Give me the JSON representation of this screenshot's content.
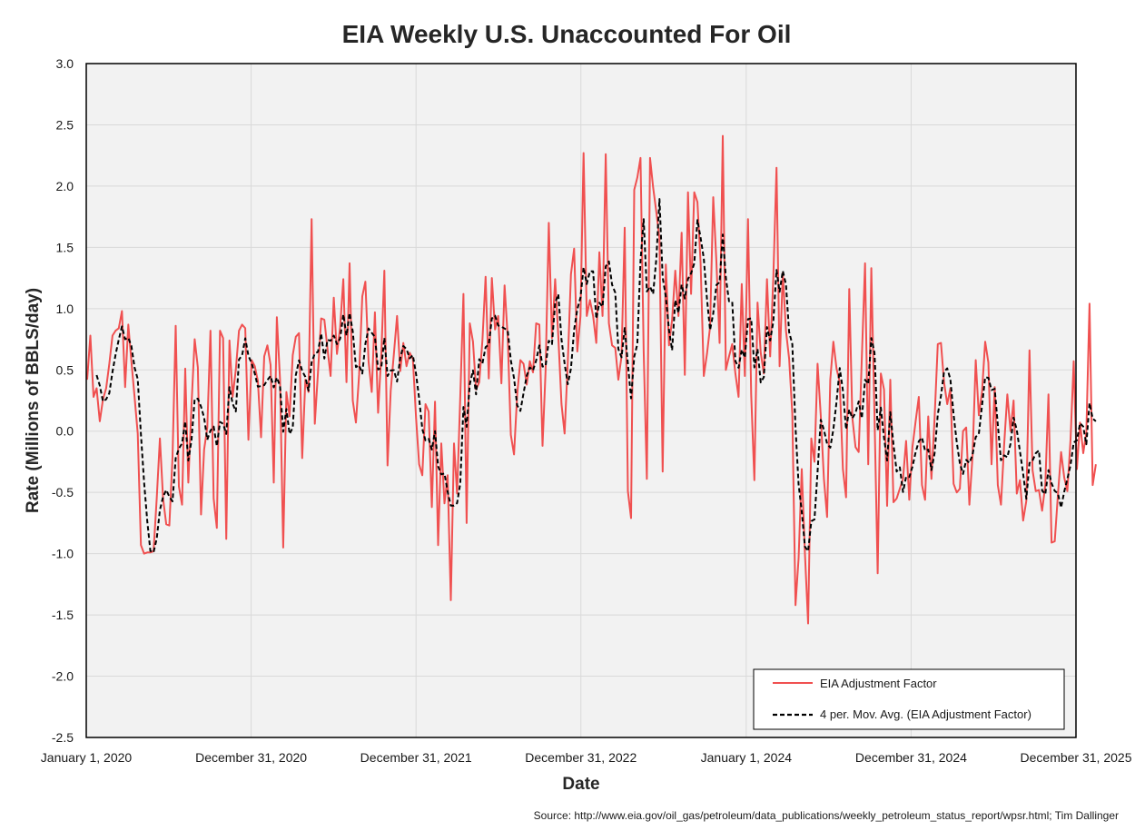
{
  "chart_data": {
    "type": "line",
    "title": "EIA Weekly U.S. Unaccounted For Oil",
    "xlabel": "Date",
    "ylabel": "Rate (Millions of BBLS/day)",
    "source": "Source: http://www.eia.gov/oil_gas/petroleum/data_publications/weekly_petroleum_status_report/wpsr.html; Tim Dallinger",
    "x_range": [
      "2020-01-01",
      "2025-12-31"
    ],
    "ylim": [
      -2.5,
      3.0
    ],
    "y_ticks": [
      -2.5,
      -2.0,
      -1.5,
      -1.0,
      -0.5,
      0.0,
      0.5,
      1.0,
      1.5,
      2.0,
      2.5,
      3.0
    ],
    "y_tick_labels": [
      "-2.5",
      "-2.0",
      "-1.5",
      "-1.0",
      "-0.5",
      "0.0",
      "0.5",
      "1.0",
      "1.5",
      "2.0",
      "2.5",
      "3.0"
    ],
    "x_ticks": [
      "2020-01-01",
      "2020-12-31",
      "2021-12-31",
      "2022-12-31",
      "2024-01-01",
      "2024-12-31",
      "2025-12-31"
    ],
    "x_tick_labels": [
      "January 1, 2020",
      "December 31, 2020",
      "December 31, 2021",
      "December 31, 2022",
      "January 1, 2024",
      "December 31, 2024",
      "December 31, 2025"
    ],
    "grid": true,
    "legend_position": "bottom-right",
    "series": [
      {
        "name": "EIA Adjustment Factor",
        "color": "#f05050",
        "style": "solid",
        "start_date": "2020-01-03",
        "interval_days": 7,
        "values": [
          0.42,
          0.78,
          0.28,
          0.35,
          0.08,
          0.26,
          0.35,
          0.55,
          0.78,
          0.82,
          0.84,
          0.98,
          0.36,
          0.87,
          0.57,
          0.28,
          -0.02,
          -0.93,
          -1.0,
          -0.99,
          -0.99,
          -0.98,
          -0.55,
          -0.06,
          -0.55,
          -0.76,
          -0.77,
          -0.21,
          0.86,
          -0.45,
          -0.6,
          0.51,
          -0.42,
          0.21,
          0.75,
          0.52,
          -0.68,
          -0.15,
          0.03,
          0.82,
          -0.55,
          -0.79,
          0.82,
          0.76,
          -0.88,
          0.74,
          0.28,
          0.5,
          0.82,
          0.87,
          0.84,
          -0.07,
          0.58,
          0.53,
          0.41,
          -0.05,
          0.61,
          0.7,
          0.54,
          -0.42,
          0.93,
          0.42,
          -0.95,
          0.32,
          0.12,
          0.62,
          0.77,
          0.8,
          -0.22,
          0.42,
          0.32,
          1.73,
          0.06,
          0.48,
          0.92,
          0.91,
          0.67,
          0.45,
          1.09,
          0.63,
          0.85,
          1.24,
          0.4,
          1.37,
          0.25,
          0.07,
          0.46,
          1.1,
          1.22,
          0.57,
          0.32,
          0.97,
          0.15,
          0.62,
          1.31,
          -0.28,
          0.33,
          0.63,
          0.94,
          0.49,
          0.72,
          0.53,
          0.64,
          0.59,
          0.11,
          -0.27,
          -0.36,
          0.22,
          0.16,
          -0.62,
          0.24,
          -0.93,
          -0.1,
          -0.59,
          -0.36,
          -1.38,
          -0.1,
          -0.51,
          0.28,
          1.12,
          -0.75,
          0.88,
          0.73,
          0.34,
          0.4,
          0.74,
          1.26,
          0.43,
          1.25,
          0.83,
          0.94,
          0.39,
          1.19,
          0.76,
          -0.03,
          -0.19,
          0.3,
          0.58,
          0.55,
          0.38,
          0.57,
          0.48,
          0.88,
          0.87,
          -0.12,
          0.5,
          1.7,
          0.76,
          1.24,
          0.77,
          0.22,
          -0.02,
          0.56,
          1.28,
          1.49,
          0.65,
          0.94,
          2.27,
          0.94,
          1.07,
          0.94,
          0.72,
          1.46,
          0.94,
          2.26,
          0.88,
          0.7,
          0.68,
          0.42,
          0.61,
          1.66,
          -0.49,
          -0.71,
          1.97,
          2.07,
          2.23,
          0.65,
          -0.39,
          2.23,
          1.99,
          1.79,
          1.57,
          -0.33,
          1.36,
          0.7,
          0.91,
          1.31,
          0.94,
          1.62,
          0.46,
          1.95,
          1.12,
          1.95,
          1.87,
          1.37,
          0.45,
          0.63,
          0.85,
          1.91,
          1.38,
          0.72,
          2.41,
          0.5,
          0.61,
          0.71,
          0.47,
          0.28,
          1.2,
          0.45,
          1.73,
          0.3,
          -0.4,
          1.05,
          0.64,
          0.47,
          1.24,
          0.61,
          1.26,
          2.15,
          0.53,
          1.29,
          0.82,
          0.59,
          0.14,
          -1.42,
          -1.04,
          -0.31,
          -1.0,
          -1.57,
          -0.06,
          -0.25,
          0.55,
          0.13,
          -0.39,
          -0.7,
          0.42,
          0.73,
          0.51,
          0.4,
          -0.31,
          -0.54,
          1.16,
          0.11,
          -0.13,
          -0.17,
          0.61,
          1.37,
          -0.27,
          1.33,
          0.13,
          -1.16,
          0.47,
          0.34,
          -0.61,
          0.42,
          -0.58,
          -0.55,
          -0.47,
          -0.39,
          -0.08,
          -0.56,
          -0.13,
          0.08,
          0.28,
          -0.44,
          -0.56,
          0.12,
          -0.39,
          0.11,
          0.71,
          0.72,
          0.4,
          0.22,
          0.35,
          -0.43,
          -0.5,
          -0.47,
          0.0,
          0.03,
          -0.6,
          -0.2,
          0.58,
          0.13,
          0.32,
          0.73,
          0.56,
          -0.27,
          0.36,
          -0.44,
          -0.6,
          -0.11,
          0.3,
          0.0,
          0.25,
          -0.51,
          -0.4,
          -0.73,
          -0.57,
          0.66,
          -0.32,
          -0.49,
          -0.48,
          -0.65,
          -0.44,
          0.3,
          -0.91,
          -0.9,
          -0.52,
          -0.17,
          -0.38,
          -0.49,
          -0.07,
          0.57,
          -0.31,
          0.07,
          -0.18,
          -0.01,
          1.04,
          -0.44,
          -0.27
        ]
      },
      {
        "name": "4 per. Mov. Avg. (EIA Adjustment Factor)",
        "color": "#000000",
        "style": "dashed",
        "window": 4
      }
    ]
  }
}
